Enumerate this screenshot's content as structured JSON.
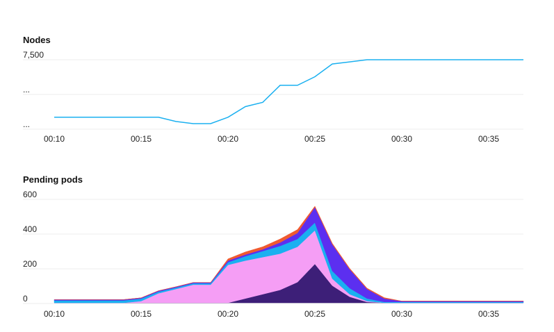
{
  "chart_data": [
    {
      "type": "line",
      "title": "Nodes",
      "y_tick_labels": [
        "7,500",
        "...",
        "..."
      ],
      "x_tick_labels": [
        "00:10",
        "00:15",
        "00:20",
        "00:25",
        "00:30",
        "00:35"
      ],
      "x": [
        "00:10",
        "00:11",
        "00:12",
        "00:13",
        "00:14",
        "00:15",
        "00:16",
        "00:17",
        "00:18",
        "00:19",
        "00:20",
        "00:21",
        "00:22",
        "00:23",
        "00:24",
        "00:25",
        "00:26",
        "00:27",
        "00:28",
        "00:29",
        "00:30",
        "00:31",
        "00:32",
        "00:33",
        "00:34",
        "00:35",
        "00:36",
        "00:37"
      ],
      "series": [
        {
          "color": "#1ab0f0",
          "values": [
            6400,
            6400,
            6400,
            6400,
            6400,
            6400,
            6400,
            6300,
            6250,
            6250,
            6400,
            6650,
            6750,
            7150,
            7150,
            7350,
            7650,
            7700,
            7750,
            7750,
            7750,
            7750,
            7750,
            7750,
            7750,
            7750,
            7750,
            7750
          ]
        }
      ],
      "grid": true
    },
    {
      "type": "area",
      "stacked": true,
      "title": "Pending pods",
      "y_tick_labels": [
        "600",
        "400",
        "200",
        "0"
      ],
      "x_tick_labels": [
        "00:10",
        "00:15",
        "00:20",
        "00:25",
        "00:30",
        "00:35"
      ],
      "ylim": [
        0,
        600
      ],
      "x": [
        "00:10",
        "00:11",
        "00:12",
        "00:13",
        "00:14",
        "00:15",
        "00:16",
        "00:17",
        "00:18",
        "00:19",
        "00:20",
        "00:21",
        "00:22",
        "00:23",
        "00:24",
        "00:25",
        "00:26",
        "00:27",
        "00:28",
        "00:29",
        "00:30",
        "00:31",
        "00:32",
        "00:33",
        "00:34",
        "00:35",
        "00:36",
        "00:37"
      ],
      "series": [
        {
          "color": "#3d1f78",
          "values": [
            0,
            0,
            0,
            0,
            0,
            0,
            0,
            0,
            0,
            0,
            0,
            25,
            50,
            75,
            120,
            225,
            100,
            35,
            5,
            0,
            0,
            0,
            0,
            0,
            0,
            0,
            0,
            0
          ]
        },
        {
          "color": "#f59ef5",
          "values": [
            0,
            0,
            0,
            0,
            0,
            10,
            55,
            80,
            105,
            105,
            220,
            220,
            215,
            210,
            205,
            195,
            40,
            15,
            5,
            0,
            0,
            0,
            0,
            0,
            0,
            0,
            0,
            0
          ]
        },
        {
          "color": "#1ab0f0",
          "values": [
            14,
            14,
            14,
            14,
            14,
            14,
            10,
            8,
            8,
            8,
            15,
            25,
            35,
            45,
            45,
            45,
            45,
            35,
            15,
            5,
            5,
            5,
            5,
            5,
            5,
            5,
            5,
            5
          ]
        },
        {
          "color": "#5c2ff0",
          "values": [
            5,
            5,
            5,
            5,
            5,
            5,
            5,
            5,
            5,
            5,
            10,
            10,
            10,
            20,
            35,
            90,
            155,
            110,
            55,
            20,
            5,
            5,
            5,
            5,
            5,
            5,
            5,
            5
          ]
        },
        {
          "color": "#f05a30",
          "values": [
            0,
            0,
            0,
            0,
            0,
            0,
            0,
            0,
            0,
            0,
            10,
            15,
            15,
            20,
            20,
            5,
            5,
            5,
            5,
            5,
            0,
            0,
            0,
            0,
            0,
            0,
            0,
            0
          ]
        }
      ],
      "grid": true
    }
  ]
}
